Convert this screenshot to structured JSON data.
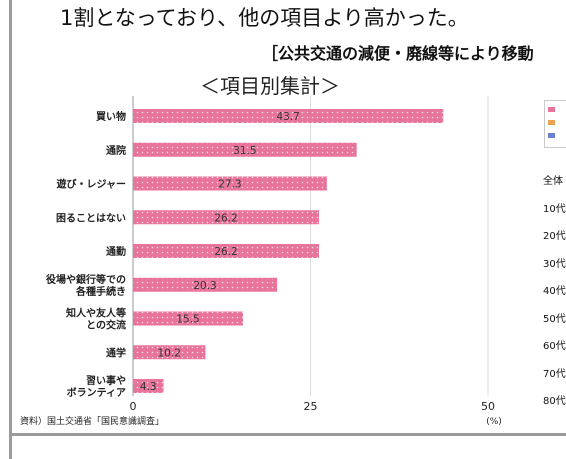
{
  "intro_text": "1割となっており、他の項目より高かった。",
  "subheading": "［公共交通の減便・廃線等により移動",
  "chart_data": {
    "type": "bar",
    "orientation": "horizontal",
    "title": "＜項目別集計＞",
    "categories": [
      "買い物",
      "通院",
      "遊び・レジャー",
      "困ることはない",
      "通勤",
      "役場や銀行等での各種手続き",
      "知人や友人等との交流",
      "通学",
      "習い事や ボランティア"
    ],
    "category_lines": [
      [
        "買い物"
      ],
      [
        "通院"
      ],
      [
        "遊び・レジャー"
      ],
      [
        "困ることはない"
      ],
      [
        "通勤"
      ],
      [
        "役場や銀行等での",
        "各種手続き"
      ],
      [
        "知人や友人等",
        "との交流"
      ],
      [
        "通学"
      ],
      [
        "習い事や",
        "ボランティア"
      ]
    ],
    "values": [
      43.7,
      31.5,
      27.3,
      26.2,
      26.2,
      20.3,
      15.5,
      10.2,
      4.3
    ],
    "value_labels": [
      "43.7",
      "31.5",
      "27.3",
      "26.2",
      "26.2",
      "20.3",
      "15.5",
      "10.2",
      "4.3"
    ],
    "xlim": [
      0,
      50
    ],
    "x_ticks": [
      "0",
      "25",
      "50"
    ],
    "xunit": "(%)",
    "grid": true,
    "bar_color": "#e8739b"
  },
  "source": "資料）国土交通省「国民意識調査」",
  "side_panel": {
    "age_labels": [
      "全体",
      "10代",
      "20代",
      "30代",
      "40代",
      "50代",
      "60代",
      "70代",
      "80代"
    ],
    "legend_colors": [
      "#e8739b",
      "#f0a050",
      "#6a7fd0"
    ]
  }
}
